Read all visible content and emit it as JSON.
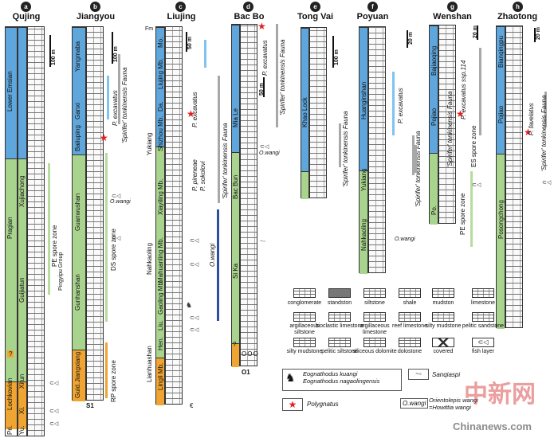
{
  "columns": [
    {
      "badge": "a",
      "name": "Qujing"
    },
    {
      "badge": "b",
      "name": "Jiangyou"
    },
    {
      "badge": "c",
      "name": "Liujing"
    },
    {
      "badge": "d",
      "name": "Bac Bo"
    },
    {
      "badge": "e",
      "name": "Tong Vai"
    },
    {
      "badge": "f",
      "name": "Poyuan"
    },
    {
      "badge": "g",
      "name": "Wenshan"
    },
    {
      "badge": "h",
      "name": "Zhaotong"
    }
  ],
  "qujing": {
    "stages": [
      "Lower Emsian",
      "Pragian",
      "Lochkovian",
      "Pri."
    ],
    "units": [
      "Xujiachong",
      "Guijiatun",
      "Xitun",
      "Xi.",
      "Yu."
    ],
    "question": "?",
    "scale": "100 m",
    "zones": [
      "PE spore zone"
    ],
    "fish_label": "O.wangi"
  },
  "jiangyou": {
    "units": [
      "Yangmaba",
      "Ganxi",
      "Baiiuping",
      "Guanwushan",
      "Pingyipu Group",
      "Gunhanshan",
      "Jiangxiang",
      "Guid.",
      "S1"
    ],
    "zones": [
      "P. excavatus",
      "'Spirifer' tonkinensis Fauna",
      "DS spore zone",
      "RP spore zone"
    ],
    "scale": "100 m",
    "fish_label": "O.wangi"
  },
  "liujing": {
    "units": [
      "Fm",
      "Mo.",
      "Liujing Mb.",
      "Da.",
      "Yukiang",
      "Shizhou Mb.",
      "Xiayiling Mb.",
      "Nahkaoling",
      "Mahuanling Mb.",
      "Gaoling Mb.",
      "Lianhuashan",
      "Hen.",
      "Liu.",
      "Lingli Mb."
    ],
    "zones": [
      "P. excavatus",
      "P. pireneae",
      "P. sokolovi",
      "'Spirifer' tonkinensis Fauna",
      "O.wangi"
    ],
    "scale": "50 m",
    "epsilon": "€"
  },
  "bacbo": {
    "units": [
      "Mia Le",
      "Bac Bun",
      "Si Ka"
    ],
    "zones": [
      "P. excavatus",
      "'Spirifer' tonkinensis Fauna"
    ],
    "scale": "50 m",
    "fish_label": "O.wangi",
    "question": "?",
    "bottom": "O1",
    "circles": "OOO"
  },
  "tongvai": {
    "units": [
      "Khao Lock"
    ],
    "zones": [
      "'Spirifer' tonkinensis Fauna"
    ],
    "scale": "100 m"
  },
  "poyuan": {
    "units": [
      "Huanginshan",
      "Yukiang",
      "Nahkaoling"
    ],
    "zones": [
      "P. excavatus",
      "'Spirifer' tonkinensis Fauna"
    ],
    "scale": "20 m",
    "fish_label": "O.wangi"
  },
  "wenshan": {
    "units": [
      "Bajiaoqing",
      "Pojiao",
      "Po."
    ],
    "zones": [
      "P. excavatus ssp.114",
      "'Spirifer' tonkinensis Fauna",
      "ES spore zone",
      "PE spore zone"
    ],
    "scale": "20 m"
  },
  "zhaotong": {
    "units": [
      "Bianqingpu",
      "Pojiao",
      "Posongchong"
    ],
    "zones": [
      "P. favelatus",
      "'Spirifer' tonkinensis Fauna"
    ],
    "scale": "20 m"
  },
  "legend": {
    "row1": [
      "conglomerate",
      "standston",
      "siltstone",
      "shale",
      "mudston",
      "limestone"
    ],
    "row2": [
      "argillaceous siltstone",
      "bioclastic limestone",
      "argillaceous limestone",
      "reef limestone",
      "silty mudstone",
      "pelitic sandstone"
    ],
    "row3": [
      "silty mudstone",
      "pelitic siltstone",
      "siliceous dolomite",
      "dolostone",
      "covered",
      "fish layer"
    ],
    "eognathodus": "Eognathodus kuangi\nEognathodus nagaolingensis",
    "sanqiaspis": "Sanqiaspi",
    "polygnatus": "Polygnatus",
    "owangi_box": "O.wangi",
    "orient_text": "Orientolepis wangi\n=Howittia wangi"
  },
  "watermark": {
    "text": "中新网",
    "site": "Chinanews.com"
  },
  "colors": {
    "blue": "#5ea6dc",
    "green": "#a9d48e",
    "orange": "#f0a431",
    "star": "#e02020"
  }
}
